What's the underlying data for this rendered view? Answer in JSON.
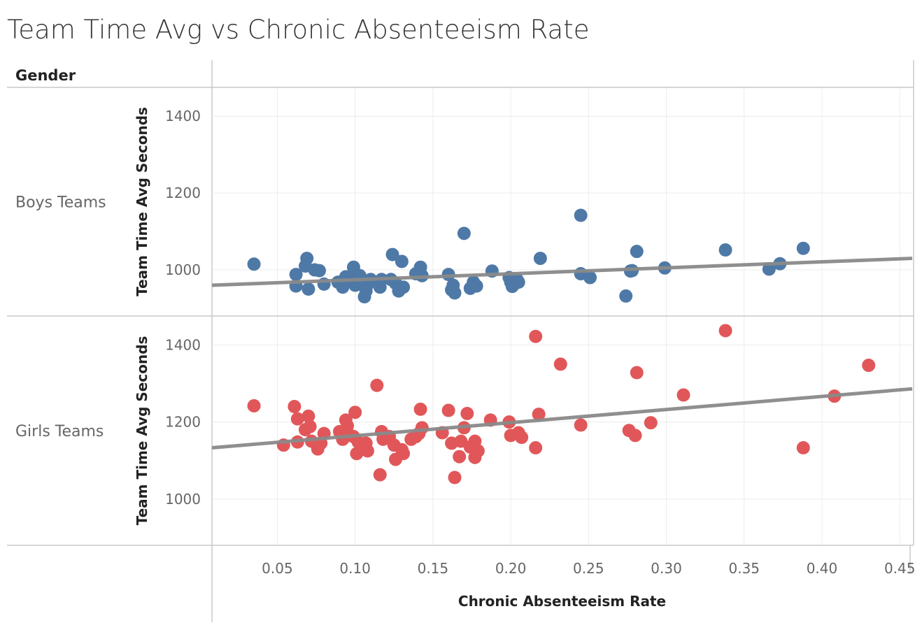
{
  "title": "Team Time Avg vs Chronic Absenteeism Rate",
  "row_header": "Gender",
  "chart_data": {
    "type": "scatter",
    "title": "Team Time Avg vs Chronic Absenteeism Rate",
    "xlabel": "Chronic Absenteeism Rate",
    "ylabel": "Team Time Avg Seconds",
    "xlim": [
      0.008,
      0.458
    ],
    "x_ticks": [
      0.05,
      0.1,
      0.15,
      0.2,
      0.25,
      0.3,
      0.35,
      0.4,
      0.45
    ],
    "x_tick_labels": [
      "0.05",
      "0.10",
      "0.15",
      "0.20",
      "0.25",
      "0.30",
      "0.35",
      "0.40",
      "0.45"
    ],
    "grid": true,
    "facet_by": "Gender",
    "panels": [
      {
        "label": "Boys Teams",
        "color": "#4e79a7",
        "ylim": [
          880,
          1475
        ],
        "y_ticks": [
          1000,
          1200,
          1400
        ],
        "y_tick_labels": [
          "1000",
          "1200",
          "1400"
        ],
        "trend": {
          "x": [
            0.008,
            0.458
          ],
          "y": [
            960,
            1030
          ]
        },
        "points": [
          [
            0.035,
            1015
          ],
          [
            0.062,
            988
          ],
          [
            0.062,
            958
          ],
          [
            0.068,
            1010
          ],
          [
            0.069,
            1030
          ],
          [
            0.07,
            950
          ],
          [
            0.074,
            1000
          ],
          [
            0.077,
            998
          ],
          [
            0.08,
            963
          ],
          [
            0.089,
            968
          ],
          [
            0.092,
            955
          ],
          [
            0.094,
            982
          ],
          [
            0.097,
            975
          ],
          [
            0.099,
            1007
          ],
          [
            0.1,
            960
          ],
          [
            0.103,
            985
          ],
          [
            0.106,
            930
          ],
          [
            0.107,
            945
          ],
          [
            0.108,
            962
          ],
          [
            0.11,
            975
          ],
          [
            0.116,
            955
          ],
          [
            0.117,
            975
          ],
          [
            0.123,
            975
          ],
          [
            0.124,
            1040
          ],
          [
            0.126,
            965
          ],
          [
            0.128,
            945
          ],
          [
            0.13,
            1022
          ],
          [
            0.131,
            955
          ],
          [
            0.139,
            990
          ],
          [
            0.142,
            1007
          ],
          [
            0.143,
            985
          ],
          [
            0.16,
            988
          ],
          [
            0.162,
            948
          ],
          [
            0.163,
            960
          ],
          [
            0.164,
            940
          ],
          [
            0.17,
            1095
          ],
          [
            0.174,
            952
          ],
          [
            0.176,
            968
          ],
          [
            0.178,
            958
          ],
          [
            0.188,
            997
          ],
          [
            0.199,
            980
          ],
          [
            0.2,
            968
          ],
          [
            0.201,
            957
          ],
          [
            0.204,
            975
          ],
          [
            0.205,
            968
          ],
          [
            0.219,
            1030
          ],
          [
            0.245,
            1142
          ],
          [
            0.245,
            990
          ],
          [
            0.251,
            980
          ],
          [
            0.274,
            932
          ],
          [
            0.277,
            997
          ],
          [
            0.278,
            998
          ],
          [
            0.281,
            1048
          ],
          [
            0.299,
            1005
          ],
          [
            0.338,
            1052
          ],
          [
            0.366,
            1002
          ],
          [
            0.373,
            1016
          ],
          [
            0.388,
            1056
          ]
        ]
      },
      {
        "label": "Girls Teams",
        "color": "#e15759",
        "ylim": [
          880,
          1475
        ],
        "y_ticks": [
          1000,
          1200,
          1400
        ],
        "y_tick_labels": [
          "1000",
          "1200",
          "1400"
        ],
        "trend": {
          "x": [
            0.008,
            0.458
          ],
          "y": [
            1133,
            1286
          ]
        },
        "points": [
          [
            0.035,
            1242
          ],
          [
            0.054,
            1140
          ],
          [
            0.061,
            1240
          ],
          [
            0.063,
            1208
          ],
          [
            0.063,
            1148
          ],
          [
            0.068,
            1180
          ],
          [
            0.07,
            1215
          ],
          [
            0.071,
            1188
          ],
          [
            0.072,
            1150
          ],
          [
            0.076,
            1130
          ],
          [
            0.078,
            1145
          ],
          [
            0.08,
            1170
          ],
          [
            0.09,
            1175
          ],
          [
            0.092,
            1155
          ],
          [
            0.094,
            1205
          ],
          [
            0.095,
            1190
          ],
          [
            0.097,
            1165
          ],
          [
            0.099,
            1162
          ],
          [
            0.1,
            1225
          ],
          [
            0.101,
            1118
          ],
          [
            0.102,
            1148
          ],
          [
            0.105,
            1138
          ],
          [
            0.107,
            1145
          ],
          [
            0.108,
            1125
          ],
          [
            0.114,
            1295
          ],
          [
            0.116,
            1063
          ],
          [
            0.117,
            1175
          ],
          [
            0.118,
            1155
          ],
          [
            0.122,
            1162
          ],
          [
            0.125,
            1140
          ],
          [
            0.126,
            1103
          ],
          [
            0.13,
            1128
          ],
          [
            0.131,
            1118
          ],
          [
            0.136,
            1155
          ],
          [
            0.139,
            1162
          ],
          [
            0.141,
            1170
          ],
          [
            0.142,
            1233
          ],
          [
            0.143,
            1185
          ],
          [
            0.156,
            1172
          ],
          [
            0.16,
            1230
          ],
          [
            0.162,
            1145
          ],
          [
            0.164,
            1056
          ],
          [
            0.167,
            1110
          ],
          [
            0.168,
            1150
          ],
          [
            0.17,
            1185
          ],
          [
            0.172,
            1222
          ],
          [
            0.174,
            1135
          ],
          [
            0.177,
            1108
          ],
          [
            0.177,
            1150
          ],
          [
            0.179,
            1125
          ],
          [
            0.187,
            1205
          ],
          [
            0.199,
            1200
          ],
          [
            0.2,
            1165
          ],
          [
            0.205,
            1172
          ],
          [
            0.207,
            1160
          ],
          [
            0.216,
            1422
          ],
          [
            0.216,
            1133
          ],
          [
            0.218,
            1220
          ],
          [
            0.232,
            1350
          ],
          [
            0.245,
            1192
          ],
          [
            0.276,
            1178
          ],
          [
            0.28,
            1165
          ],
          [
            0.281,
            1328
          ],
          [
            0.29,
            1198
          ],
          [
            0.311,
            1270
          ],
          [
            0.338,
            1437
          ],
          [
            0.388,
            1133
          ],
          [
            0.408,
            1267
          ],
          [
            0.43,
            1347
          ]
        ]
      }
    ]
  }
}
